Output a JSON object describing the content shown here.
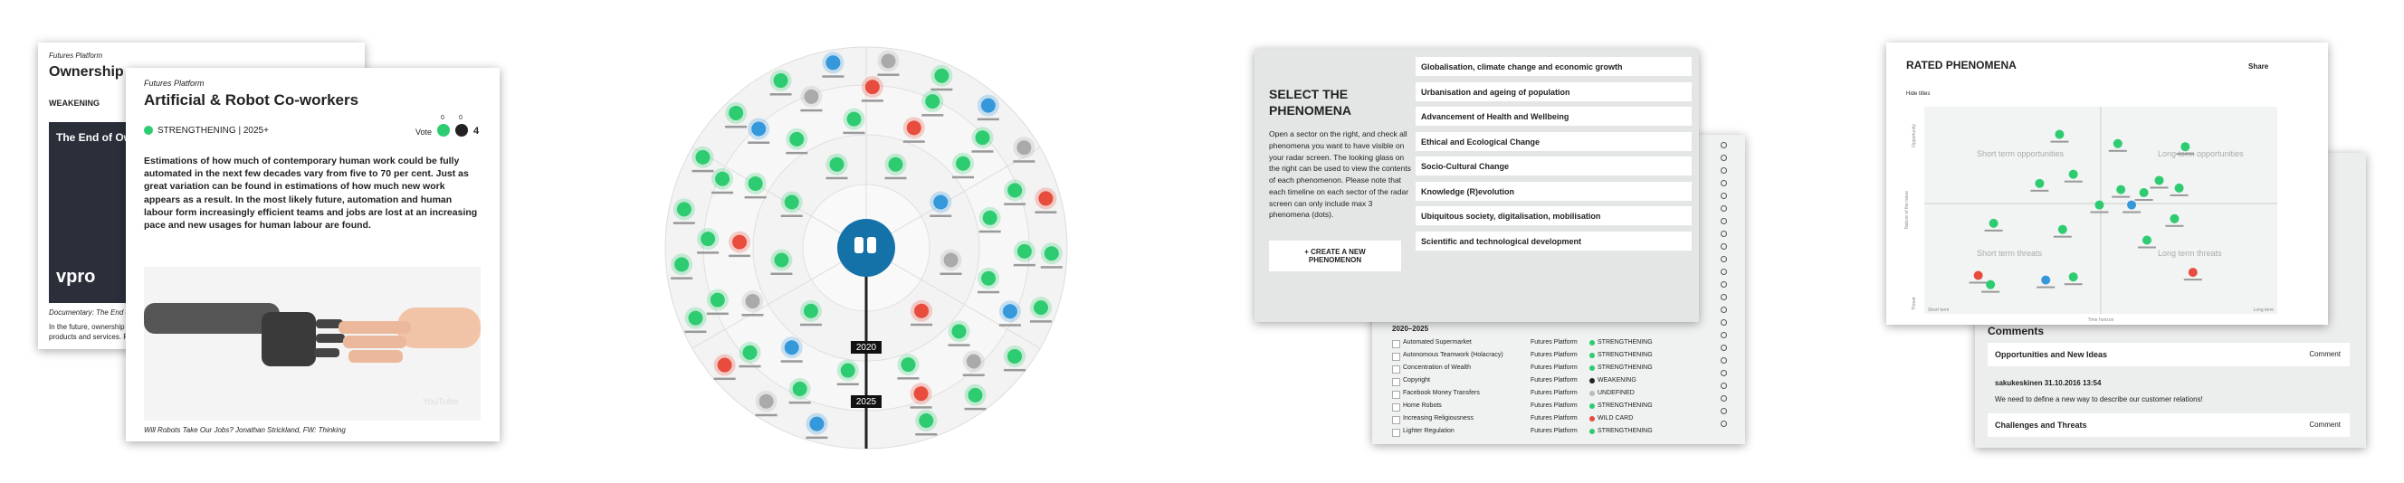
{
  "ownership_card": {
    "source": "Futures Platform",
    "title": "Ownership",
    "status": "WEAKENING",
    "video_title": "The End of Owne",
    "video_brand": "vpro",
    "caption": "Documentary: The End of O",
    "text_1": "In the future, ownership",
    "text_2": "products and services. R"
  },
  "robot_card": {
    "source": "Futures Platform",
    "title": "Artificial & Robot Co-workers",
    "status": "STRENGTHENING | 2025+",
    "vote_label": "Vote",
    "vote_up": "0",
    "vote_down": "0",
    "score": "4",
    "body": "Estimations of how much of contemporary human work could be fully automated in the next few decades vary from five to 70 per cent. Just as great variation can be found in estimations of how much new work appears as a result. In the most likely future, automation and human labour form increasingly efficient teams and jobs are lost at an increasing pace and new usages for human labour are found.",
    "watermark": "YouTube",
    "caption": "Will Robots Take Our Jobs? Jonathan Strickland, FW: Thinking"
  },
  "radar": {
    "timeline_1": "2020",
    "timeline_2": "2025"
  },
  "select_panel": {
    "title_1": "SELECT THE",
    "title_2": "PHENOMENA",
    "instructions": "Open a sector on the right, and check all phenomena you want to have visible on your radar screen. The looking glass on the right can be used to view the contents of each phenomenon. Please note that each timeline on each sector of the radar screen can only include max 3 phenomena (dots).",
    "button": "+ CREATE A NEW PHENOMENON",
    "sectors": [
      "Globalisation, climate change and economic growth",
      "Urbanisation and ageing of population",
      "Advancement of Health and Wellbeing",
      "Ethical and Ecological Change",
      "Socio-Cultural Change",
      "Knowledge (R)evolution",
      "Ubiquitous society, digitalisation, mobilisation",
      "Scientific and technological development"
    ]
  },
  "list_panel": {
    "period": "2020–2025",
    "rows": [
      [
        "Automated Supermarket",
        "Futures Platform",
        "STRENGTHENING"
      ],
      [
        "Autonomous Teamwork (Holacracy)",
        "Futures Platform",
        "STRENGTHENING"
      ],
      [
        "Concentration of Wealth",
        "Futures Platform",
        "STRENGTHENING"
      ],
      [
        "Copyright",
        "Futures Platform",
        "WEAKENING"
      ],
      [
        "Facebook Money Transfers",
        "Futures Platform",
        "UNDEFINED"
      ],
      [
        "Home Robots",
        "Futures Platform",
        "STRENGTHENING"
      ],
      [
        "Increasing Religiousness",
        "Futures Platform",
        "WILD CARD"
      ],
      [
        "Lighter Regulation",
        "Futures Platform",
        "STRENGTHENING"
      ]
    ]
  },
  "rated_panel": {
    "title": "RATED PHENOMENA",
    "share": "Share",
    "hide_titles": "Hide titles",
    "q_tl": "Short term opportunities",
    "q_tr": "Long term opportunities",
    "q_bl": "Short term threats",
    "q_br": "Long term threats",
    "y_top": "Opportunity",
    "y_bottom": "Threat",
    "y_axis": "Nature of the issue",
    "x_left": "Short term",
    "x_right": "Long term",
    "x_axis": "Time horizon"
  },
  "comments_panel": {
    "title": "Comments",
    "section_1": "Opportunities and New Ideas",
    "comment_btn_1": "Comment",
    "author": "sakukeskinen 31.10.2016 13:54",
    "comment": "We need to define a new way to describe our customer relations!",
    "section_2": "Challenges and Threats",
    "comment_btn_2": "Comment"
  }
}
